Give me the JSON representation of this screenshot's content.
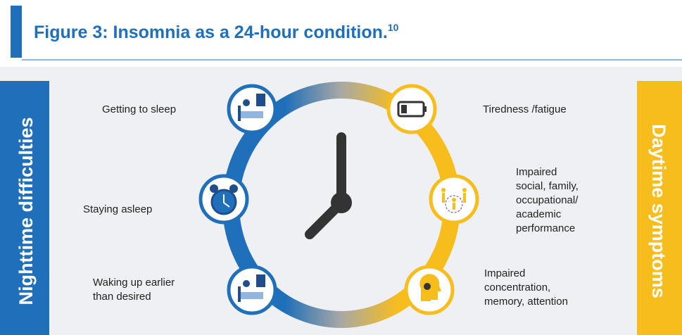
{
  "header": {
    "title": "Figure 3: Insomnia as a 24-hour condition.",
    "superscript": "10"
  },
  "left_band": {
    "label": "Nighttime difficulties"
  },
  "right_band": {
    "label": "Daytime symptoms"
  },
  "nighttime": [
    {
      "lines": [
        "Getting to sleep"
      ]
    },
    {
      "lines": [
        "Staying asleep"
      ]
    },
    {
      "lines": [
        "Waking up earlier",
        "than desired"
      ]
    }
  ],
  "daytime": [
    {
      "lines": [
        "Tiredness /fatigue"
      ]
    },
    {
      "lines": [
        "Impaired",
        "social, family,",
        "occupational/",
        "academic",
        "performance"
      ]
    },
    {
      "lines": [
        "Impaired",
        "concentration,",
        "memory, attention"
      ]
    }
  ]
}
